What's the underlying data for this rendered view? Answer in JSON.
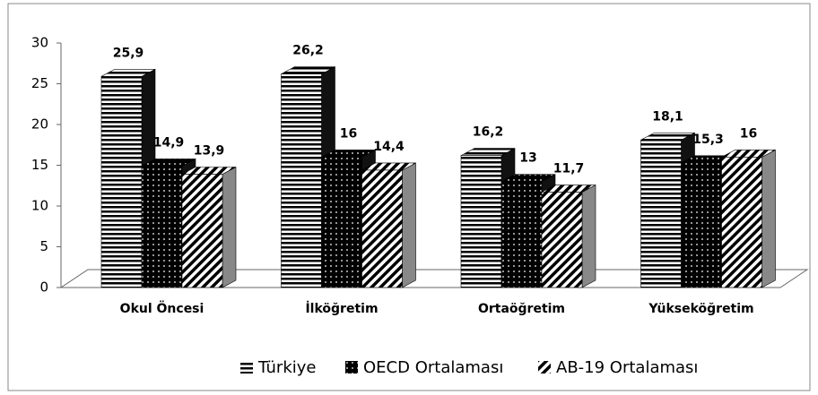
{
  "chart_data": {
    "type": "bar3d",
    "categories": [
      "Okul Öncesi",
      "İlköğretim",
      "Ortaöğretim",
      "Yükseköğretim"
    ],
    "series": [
      {
        "name": "Türkiye",
        "pattern": "horizontal",
        "values": [
          25.9,
          26.2,
          16.2,
          18.1
        ],
        "value_labels": [
          "25,9",
          "26,2",
          "16,2",
          "18,1"
        ]
      },
      {
        "name": "OECD Ortalaması",
        "pattern": "dots",
        "values": [
          14.9,
          16,
          13,
          15.3
        ],
        "value_labels": [
          "14,9",
          "16",
          "13",
          "15,3"
        ]
      },
      {
        "name": "AB-19 Ortalaması",
        "pattern": "diagonal",
        "values": [
          13.9,
          14.4,
          11.7,
          16
        ],
        "value_labels": [
          "13,9",
          "14,4",
          "11,7",
          "16"
        ]
      }
    ],
    "ylim": [
      0,
      30
    ],
    "yticks": [
      0,
      5,
      10,
      15,
      20,
      25,
      30
    ],
    "legend": "bottom"
  }
}
